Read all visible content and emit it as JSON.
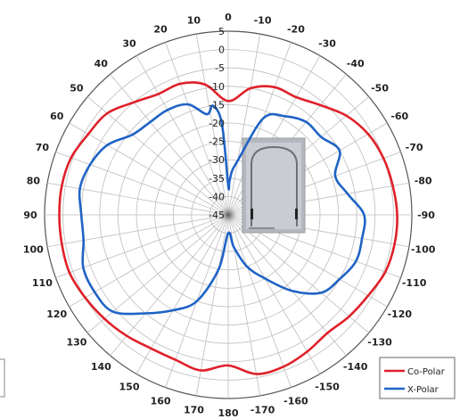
{
  "chart_data": {
    "type": "polar-line",
    "angle_ticks": [
      "0",
      "10",
      "20",
      "30",
      "40",
      "50",
      "60",
      "70",
      "80",
      "90",
      "100",
      "110",
      "120",
      "130",
      "140",
      "150",
      "160",
      "170",
      "180",
      "-170",
      "-160",
      "-150",
      "-140",
      "-130",
      "-120",
      "-110",
      "-100",
      "-90",
      "-80",
      "-70",
      "-60",
      "-50",
      "-40",
      "-30",
      "-20",
      "-10"
    ],
    "radial_ticks": [
      "5",
      "0",
      "-5",
      "-10",
      "-15",
      "-20",
      "-25",
      "-30",
      "-35",
      "-40",
      "-45"
    ],
    "rlim": [
      -45,
      5
    ],
    "angle_direction": "counterclockwise",
    "zero_location": "top",
    "grid": true,
    "legend_position": "bottom-right",
    "series": [
      {
        "name": "Co-Polar",
        "color": "#e0202a",
        "theta": [
          0,
          10,
          20,
          30,
          40,
          50,
          60,
          70,
          80,
          90,
          100,
          110,
          120,
          130,
          140,
          150,
          160,
          170,
          180,
          -170,
          -160,
          -150,
          -140,
          -130,
          -120,
          -110,
          -100,
          -90,
          -80,
          -70,
          -60,
          -50,
          -40,
          -30,
          -20,
          -10
        ],
        "r": [
          -14,
          -9,
          -7,
          -7,
          -5,
          -2,
          -1,
          0.5,
          1,
          1,
          1,
          1,
          0,
          -1,
          -2,
          -3,
          -3,
          -2,
          -4,
          -1,
          -1,
          -2,
          -3,
          -2,
          -1,
          0.5,
          1,
          1,
          0.5,
          0,
          -1,
          -3,
          -6,
          -8,
          -8,
          -10
        ]
      },
      {
        "name": "X-Polar",
        "color": "#1f63c6",
        "theta": [
          0,
          4,
          8,
          12,
          20,
          30,
          40,
          50,
          60,
          70,
          80,
          90,
          100,
          110,
          120,
          130,
          140,
          150,
          160,
          170,
          180,
          -170,
          -160,
          -150,
          -140,
          -130,
          -120,
          -110,
          -100,
          -90,
          -80,
          -70,
          -60,
          -50,
          -40,
          -30,
          -20,
          -10,
          -5,
          -2
        ],
        "r": [
          -37,
          -20,
          -15,
          -17,
          -13,
          -12,
          -12,
          -11,
          -7,
          -5,
          -4,
          -5,
          -5,
          -3,
          -3,
          -4,
          -10,
          -15,
          -20,
          -30,
          -40,
          -36,
          -30,
          -25,
          -18,
          -12,
          -10,
          -8,
          -8,
          -8,
          -12,
          -14,
          -10,
          -12,
          -12,
          -14,
          -17,
          -30,
          -33,
          -36
        ]
      }
    ]
  }
}
